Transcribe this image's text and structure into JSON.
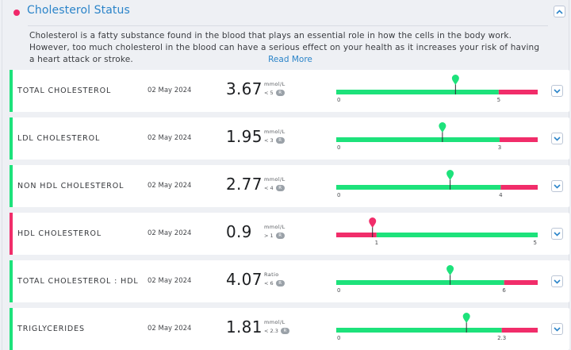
{
  "section": {
    "title": "Cholesterol Status",
    "description": "Cholesterol is a fatty substance found in the blood that plays an essential role in how the cells in the body work. However, too much cholesterol in the blood can have a serious effect on your health as it increases your risk of having a heart attack or stroke.",
    "read_more": "Read More",
    "collapse_icon": "chevron-up-icon",
    "indicator_color": "#f0286a"
  },
  "colors": {
    "green": "#1de27b",
    "red": "#f12d6a",
    "link": "#2b84c9"
  },
  "results": [
    {
      "name": "TOTAL CHOLESTEROL",
      "date": "02 May 2024",
      "value": "3.67",
      "unit": "mmol/L",
      "range": "< 5",
      "badge": "R",
      "status": "normal",
      "gauge": {
        "kind": "upper",
        "max": 6.2,
        "threshold": 5,
        "threshold_label": "5",
        "start_label": "0",
        "end_label": "",
        "marker": 3.67
      }
    },
    {
      "name": "LDL CHOLESTEROL",
      "date": "02 May 2024",
      "value": "1.95",
      "unit": "mmol/L",
      "range": "< 3",
      "badge": "R",
      "status": "normal",
      "gauge": {
        "kind": "upper",
        "max": 3.7,
        "threshold": 3,
        "threshold_label": "3",
        "start_label": "0",
        "end_label": "",
        "marker": 1.95
      }
    },
    {
      "name": "NON HDL CHOLESTEROL",
      "date": "02 May 2024",
      "value": "2.77",
      "unit": "mmol/L",
      "range": "< 4",
      "badge": "R",
      "status": "normal",
      "gauge": {
        "kind": "upper",
        "max": 4.9,
        "threshold": 4,
        "threshold_label": "4",
        "start_label": "0",
        "end_label": "",
        "marker": 2.77
      }
    },
    {
      "name": "HDL CHOLESTEROL",
      "date": "02 May 2024",
      "value": "0.9",
      "unit": "mmol/L",
      "range": "> 1",
      "badge": "R",
      "status": "low",
      "gauge": {
        "kind": "lower",
        "max": 5,
        "threshold": 1,
        "threshold_label": "1",
        "start_label": "",
        "end_label": "5",
        "marker": 0.9
      }
    },
    {
      "name": "TOTAL CHOLESTEROL : HDL",
      "date": "02 May 2024",
      "value": "4.07",
      "unit": "Ratio",
      "range": "< 6",
      "badge": "R",
      "status": "normal",
      "gauge": {
        "kind": "upper",
        "max": 7.2,
        "threshold": 6,
        "threshold_label": "6",
        "start_label": "0",
        "end_label": "",
        "marker": 4.07
      }
    },
    {
      "name": "TRIGLYCERIDES",
      "date": "02 May 2024",
      "value": "1.81",
      "unit": "mmol/L",
      "range": "< 2.3",
      "badge": "R",
      "status": "normal",
      "gauge": {
        "kind": "upper",
        "max": 2.8,
        "threshold": 2.3,
        "threshold_label": "2.3",
        "start_label": "0",
        "end_label": "",
        "marker": 1.81
      }
    }
  ]
}
